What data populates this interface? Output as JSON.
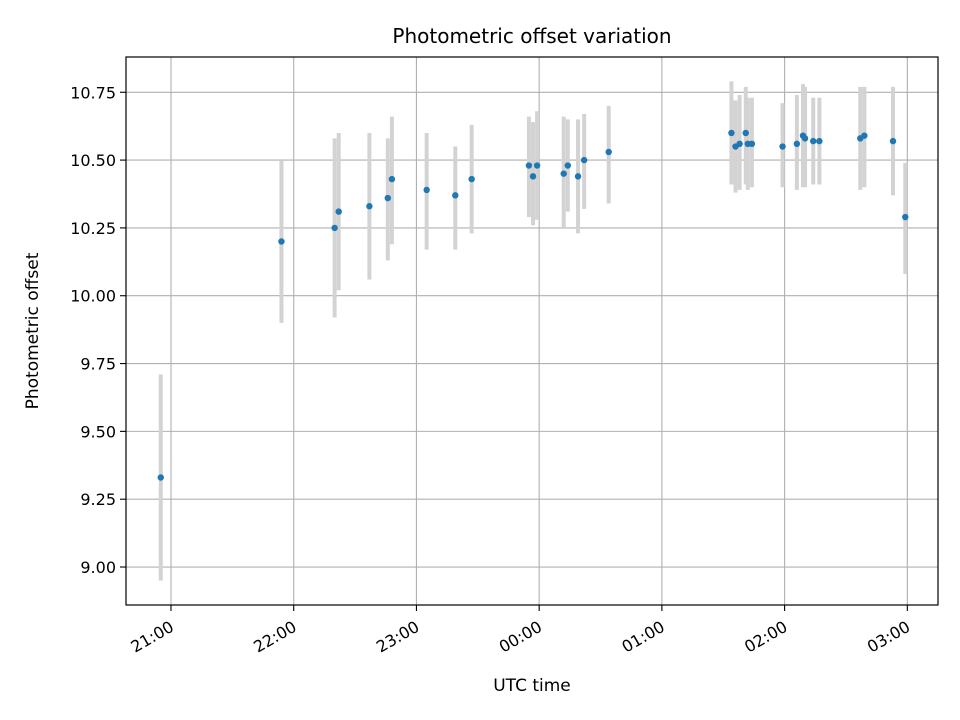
{
  "chart_data": {
    "type": "scatter",
    "title": "Photometric offset variation",
    "xlabel": "UTC time",
    "ylabel": "Photometric offset",
    "x_axis_kind": "time-of-day",
    "x_range": [
      "20:38",
      "03:15"
    ],
    "ylim": [
      8.86,
      10.88
    ],
    "grid": true,
    "legend": "none",
    "x_ticks": [
      {
        "label": "21:00",
        "time": "21:00"
      },
      {
        "label": "22:00",
        "time": "22:00"
      },
      {
        "label": "23:00",
        "time": "23:00"
      },
      {
        "label": "00:00",
        "time": "00:00"
      },
      {
        "label": "01:00",
        "time": "01:00"
      },
      {
        "label": "02:00",
        "time": "02:00"
      },
      {
        "label": "03:00",
        "time": "03:00"
      }
    ],
    "y_ticks": [
      {
        "label": "9.00",
        "value": 9.0
      },
      {
        "label": "9.25",
        "value": 9.25
      },
      {
        "label": "9.50",
        "value": 9.5
      },
      {
        "label": "9.75",
        "value": 9.75
      },
      {
        "label": "10.00",
        "value": 10.0
      },
      {
        "label": "10.25",
        "value": 10.25
      },
      {
        "label": "10.50",
        "value": 10.5
      },
      {
        "label": "10.75",
        "value": 10.75
      }
    ],
    "series": [
      {
        "marker_color": "#1f77b4",
        "errorbar_color": "#d3d3d3",
        "points": [
          {
            "x": "20:55",
            "y": 9.33,
            "low": 8.95,
            "high": 9.71
          },
          {
            "x": "21:54",
            "y": 10.2,
            "low": 9.9,
            "high": 10.5
          },
          {
            "x": "22:20",
            "y": 10.25,
            "low": 9.92,
            "high": 10.58
          },
          {
            "x": "22:22",
            "y": 10.31,
            "low": 10.02,
            "high": 10.6
          },
          {
            "x": "22:37",
            "y": 10.33,
            "low": 10.06,
            "high": 10.6
          },
          {
            "x": "22:46",
            "y": 10.36,
            "low": 10.13,
            "high": 10.58
          },
          {
            "x": "22:48",
            "y": 10.43,
            "low": 10.19,
            "high": 10.66
          },
          {
            "x": "23:05",
            "y": 10.39,
            "low": 10.17,
            "high": 10.6
          },
          {
            "x": "23:19",
            "y": 10.37,
            "low": 10.17,
            "high": 10.55
          },
          {
            "x": "23:27",
            "y": 10.43,
            "low": 10.23,
            "high": 10.63
          },
          {
            "x": "23:55",
            "y": 10.48,
            "low": 10.29,
            "high": 10.66
          },
          {
            "x": "23:57",
            "y": 10.44,
            "low": 10.26,
            "high": 10.64
          },
          {
            "x": "23:59",
            "y": 10.48,
            "low": 10.28,
            "high": 10.68
          },
          {
            "x": "00:12",
            "y": 10.45,
            "low": 10.25,
            "high": 10.66
          },
          {
            "x": "00:14",
            "y": 10.48,
            "low": 10.31,
            "high": 10.65
          },
          {
            "x": "00:19",
            "y": 10.44,
            "low": 10.23,
            "high": 10.65
          },
          {
            "x": "00:22",
            "y": 10.5,
            "low": 10.32,
            "high": 10.67
          },
          {
            "x": "00:34",
            "y": 10.53,
            "low": 10.34,
            "high": 10.7
          },
          {
            "x": "01:34",
            "y": 10.6,
            "low": 10.41,
            "high": 10.79
          },
          {
            "x": "01:36",
            "y": 10.55,
            "low": 10.38,
            "high": 10.72
          },
          {
            "x": "01:38",
            "y": 10.56,
            "low": 10.39,
            "high": 10.74
          },
          {
            "x": "01:41",
            "y": 10.6,
            "low": 10.41,
            "high": 10.77
          },
          {
            "x": "01:42",
            "y": 10.56,
            "low": 10.39,
            "high": 10.73
          },
          {
            "x": "01:44",
            "y": 10.56,
            "low": 10.4,
            "high": 10.73
          },
          {
            "x": "01:59",
            "y": 10.55,
            "low": 10.4,
            "high": 10.71
          },
          {
            "x": "02:06",
            "y": 10.56,
            "low": 10.39,
            "high": 10.74
          },
          {
            "x": "02:09",
            "y": 10.59,
            "low": 10.4,
            "high": 10.78
          },
          {
            "x": "02:10",
            "y": 10.58,
            "low": 10.4,
            "high": 10.77
          },
          {
            "x": "02:14",
            "y": 10.57,
            "low": 10.41,
            "high": 10.73
          },
          {
            "x": "02:17",
            "y": 10.57,
            "low": 10.41,
            "high": 10.73
          },
          {
            "x": "02:37",
            "y": 10.58,
            "low": 10.39,
            "high": 10.77
          },
          {
            "x": "02:39",
            "y": 10.59,
            "low": 10.4,
            "high": 10.77
          },
          {
            "x": "02:53",
            "y": 10.57,
            "low": 10.37,
            "high": 10.77
          },
          {
            "x": "02:59",
            "y": 10.29,
            "low": 10.08,
            "high": 10.49
          }
        ]
      }
    ]
  }
}
